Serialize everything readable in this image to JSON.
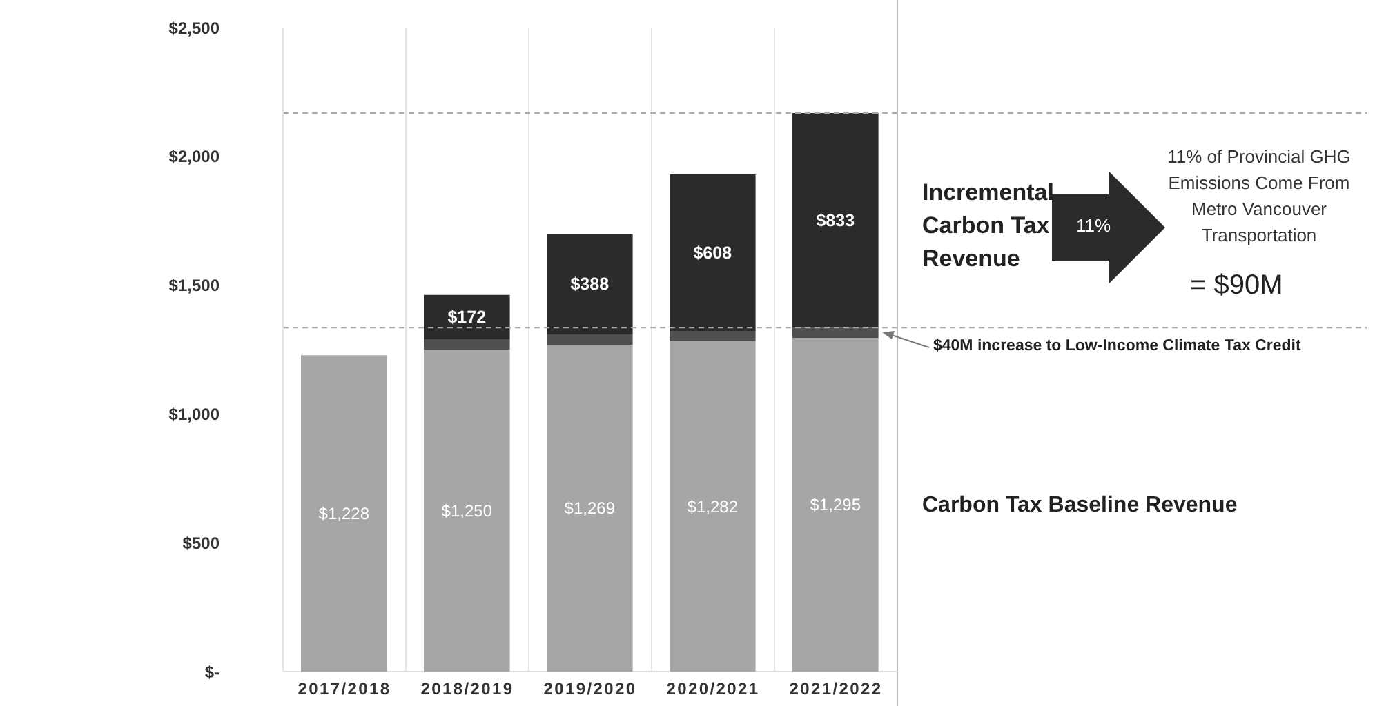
{
  "chart_data": {
    "type": "bar",
    "stacked": true,
    "categories": [
      "2017/2018",
      "2018/2019",
      "2019/2020",
      "2020/2021",
      "2021/2022"
    ],
    "series": [
      {
        "color": "#a6a6a6",
        "values": [
          1228,
          1250,
          1269,
          1282,
          1295
        ],
        "value_labels": [
          "$1,228",
          "$1,250",
          "$1,269",
          "$1,282",
          "$1,295"
        ]
      },
      {
        "color": "#4f4f4f",
        "values": [
          null,
          40,
          40,
          40,
          40
        ]
      },
      {
        "color": "#2b2b2b",
        "values": [
          null,
          172,
          388,
          608,
          833
        ],
        "value_labels": [
          null,
          "$172",
          "$388",
          "$608",
          "$833"
        ]
      }
    ],
    "ylim": [
      0,
      2500
    ],
    "yticks": [
      {
        "value": 0,
        "label": "$-"
      },
      {
        "value": 500,
        "label": "$500"
      },
      {
        "value": 1000,
        "label": "$1,000"
      },
      {
        "value": 1500,
        "label": "$1,500"
      },
      {
        "value": 2000,
        "label": "$2,000"
      },
      {
        "value": 2500,
        "label": "$2,500"
      }
    ],
    "grid": "x",
    "ref_lines": [
      {
        "axis": "y",
        "value": 2168,
        "line_style": "dashed",
        "color": "#aaaaaa"
      },
      {
        "axis": "y",
        "value": 1335,
        "line_style": "dashed",
        "color": "#aaaaaa"
      }
    ],
    "annotations": [
      "Incremental Carbon Tax Revenue",
      "11%",
      "11% of Provincial GHG Emissions Come From Metro Vancouver Transportation",
      "= $90M",
      "$40M increase to Low-Income Climate Tax Credit",
      "Carbon Tax Baseline Revenue"
    ]
  }
}
